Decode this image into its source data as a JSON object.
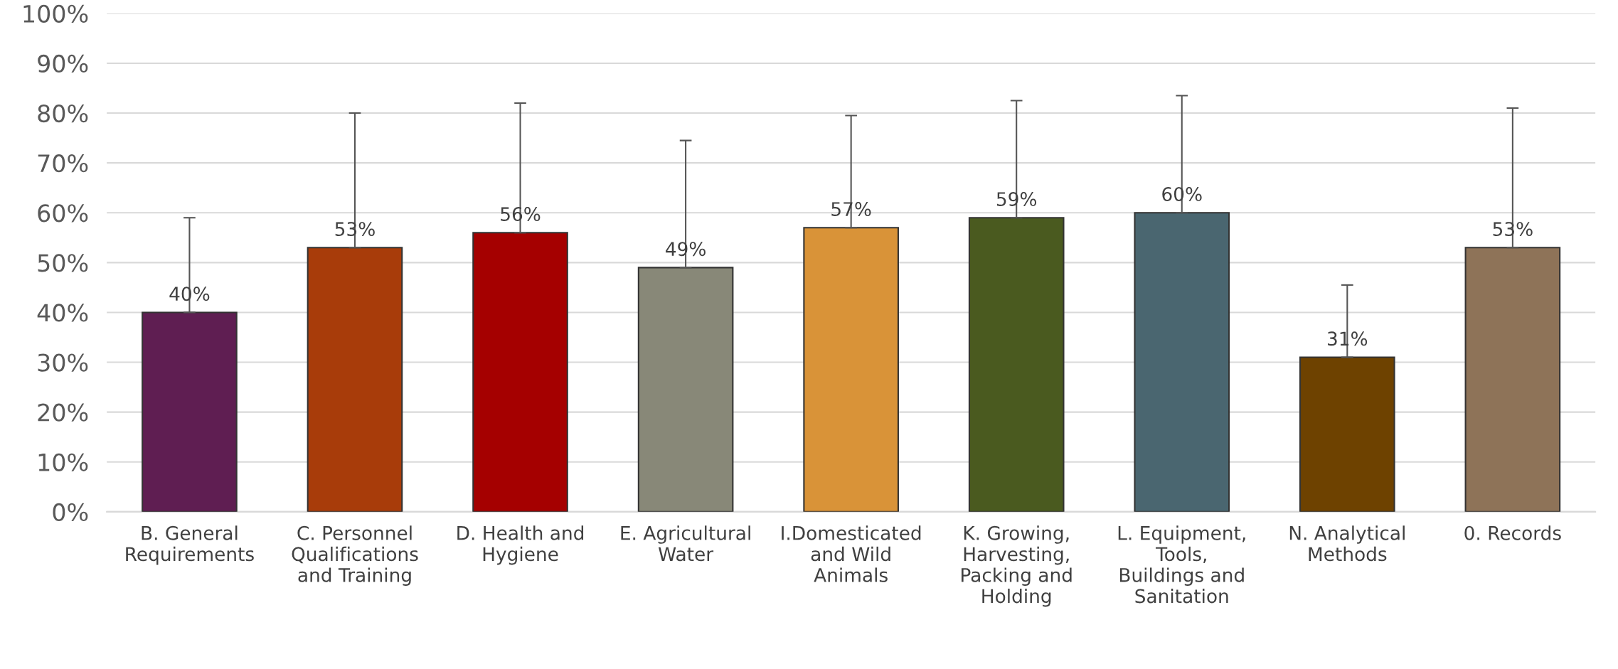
{
  "chart_data": {
    "type": "bar",
    "categories": [
      "B. General\nRequirements",
      "C. Personnel\nQualifications\nand Training",
      "D. Health and\nHygiene",
      "E. Agricultural\nWater",
      "I.Domesticated\nand Wild\nAnimals",
      "K. Growing,\nHarvesting,\nPacking and\nHolding",
      "L. Equipment,\nTools,\nBuildings and\nSanitation",
      "N. Analytical\nMethods",
      "0. Records"
    ],
    "values": [
      40,
      53,
      56,
      49,
      57,
      59,
      60,
      31,
      53
    ],
    "value_labels": [
      "40%",
      "53%",
      "56%",
      "49%",
      "57%",
      "59%",
      "60%",
      "31%",
      "53%"
    ],
    "errors": [
      [
        40,
        59
      ],
      [
        53,
        80
      ],
      [
        56,
        82
      ],
      [
        49,
        74.5
      ],
      [
        57,
        79.5
      ],
      [
        59,
        82.5
      ],
      [
        60,
        83.5
      ],
      [
        31,
        45.5
      ],
      [
        53,
        81
      ]
    ],
    "colors": [
      "#5f1e52",
      "#a83c0a",
      "#a50000",
      "#888878",
      "#d99338",
      "#4a5a1f",
      "#4a6670",
      "#6e4200",
      "#8e7358"
    ],
    "ylim": [
      0,
      100
    ],
    "yticks": [
      {
        "value": 0,
        "label": "0%"
      },
      {
        "value": 10,
        "label": "10%"
      },
      {
        "value": 20,
        "label": "20%"
      },
      {
        "value": 30,
        "label": "30%"
      },
      {
        "value": 40,
        "label": "40%"
      },
      {
        "value": 50,
        "label": "50%"
      },
      {
        "value": 60,
        "label": "60%"
      },
      {
        "value": 70,
        "label": "70%"
      },
      {
        "value": 80,
        "label": "80%"
      },
      {
        "value": 90,
        "label": "90%"
      },
      {
        "value": 100,
        "label": "100%"
      }
    ],
    "grid": "y"
  }
}
